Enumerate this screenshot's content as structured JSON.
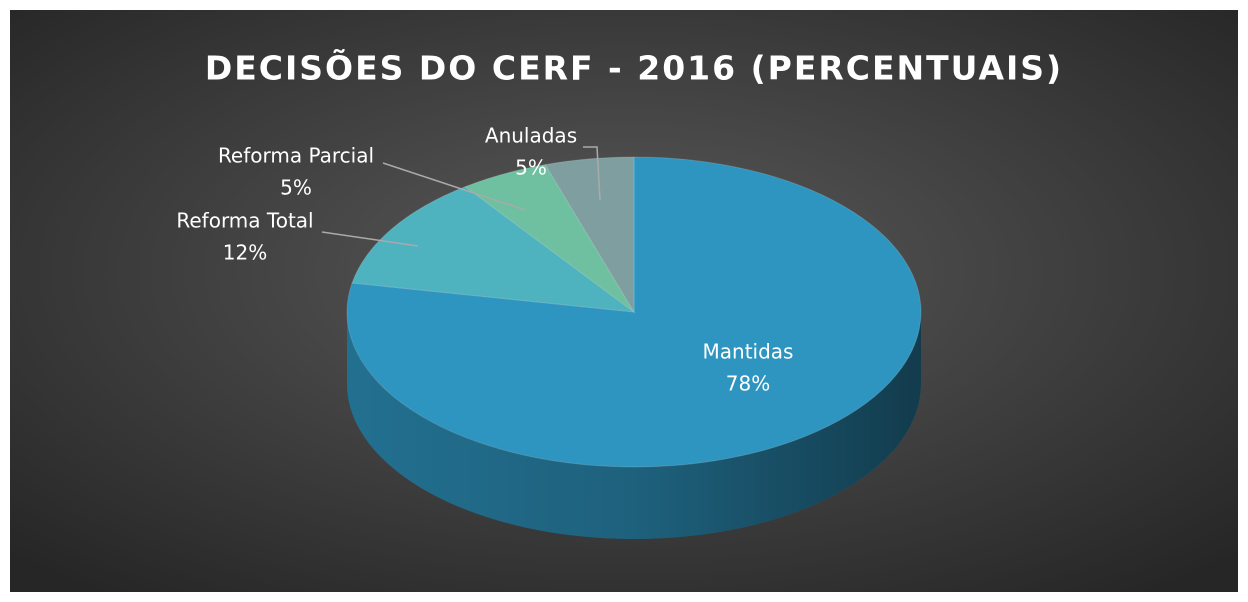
{
  "chart_data": {
    "type": "pie",
    "title": "DECISÕES DO CERF - 2016 (PERCENTUAIS)",
    "categories": [
      "Mantidas",
      "Reforma Total",
      "Reforma Parcial",
      "Anuladas"
    ],
    "values": [
      78,
      12,
      5,
      5
    ],
    "value_labels": [
      "78%",
      "12%",
      "5%",
      "5%"
    ],
    "colors": [
      "#2e95c0",
      "#4fb3bf",
      "#6ec0a0",
      "#7f9ea0"
    ]
  }
}
